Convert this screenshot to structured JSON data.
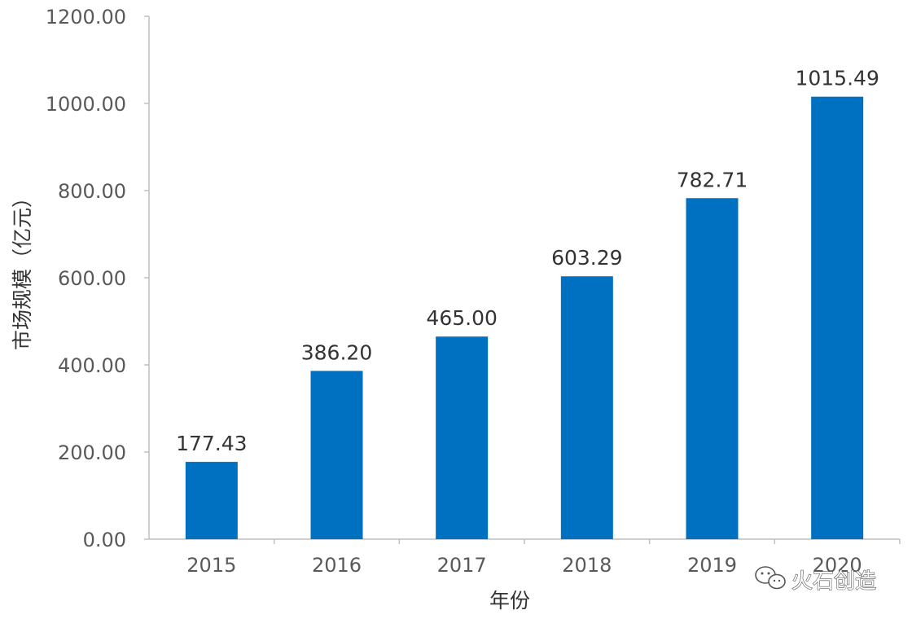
{
  "chart_data": {
    "type": "bar",
    "categories": [
      "2015",
      "2016",
      "2017",
      "2018",
      "2019",
      "2020"
    ],
    "values": [
      177.43,
      386.2,
      465.0,
      603.29,
      782.71,
      1015.49
    ],
    "data_labels": [
      "177.43",
      "386.20",
      "465.00",
      "603.29",
      "782.71",
      "1015.49"
    ],
    "xlabel": "年份",
    "ylabel": "市场规模（亿元）",
    "ylim": [
      0,
      1200
    ],
    "yticks": [
      0,
      200,
      400,
      600,
      800,
      1000,
      1200
    ],
    "ytick_labels": [
      "0.00",
      "200.00",
      "400.00",
      "600.00",
      "800.00",
      "1000.00",
      "1200.00"
    ],
    "grid": false,
    "bar_color": "#0070C0",
    "axis_color": "#BFBFBF"
  },
  "watermark": {
    "text": "火石创造",
    "icon": "wechat-icon"
  }
}
